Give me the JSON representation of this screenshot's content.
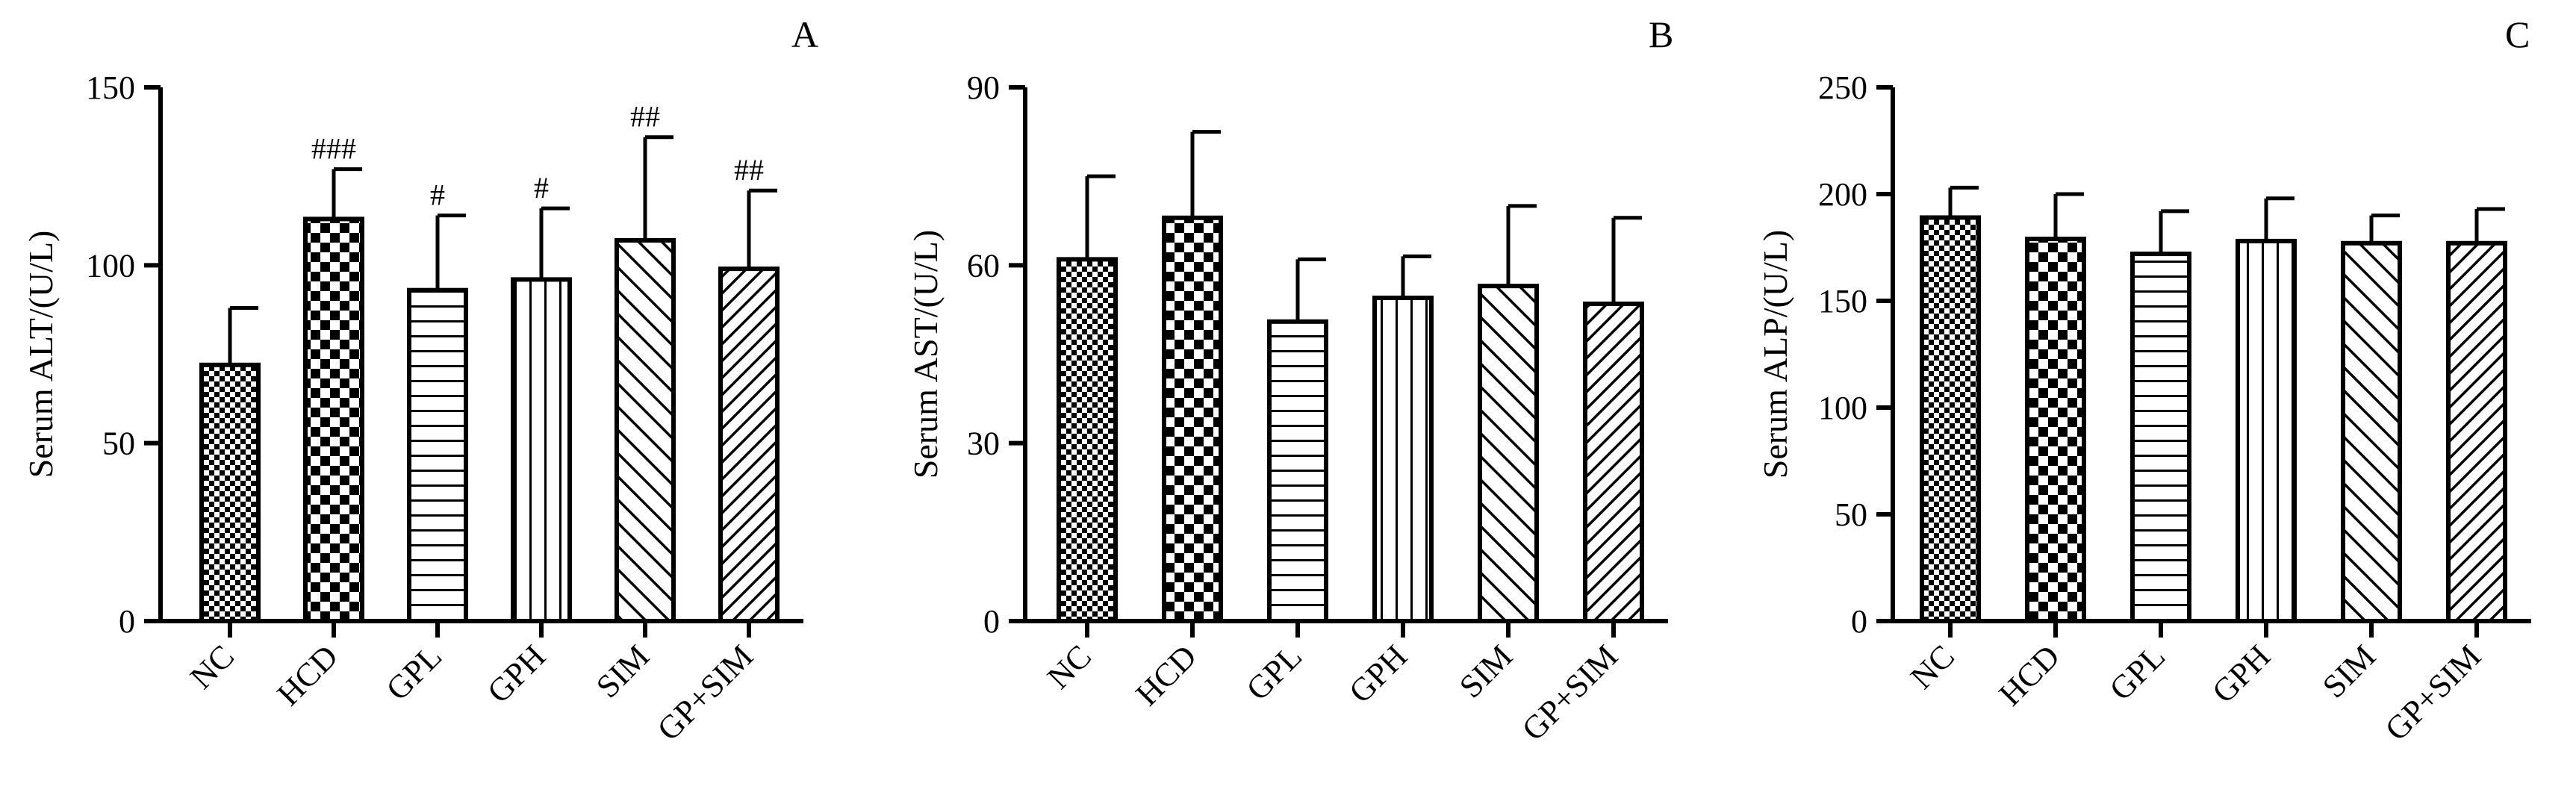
{
  "chart_data": [
    {
      "type": "bar",
      "panel_label": "A",
      "ylabel": "Serum ALT/(U/L)",
      "ylim": [
        0,
        150
      ],
      "yticks": [
        0,
        50,
        100,
        150
      ],
      "categories": [
        "NC",
        "HCD",
        "GPL",
        "GPH",
        "SIM",
        "GP+SIM"
      ],
      "values": [
        72,
        113,
        93,
        96,
        107,
        99
      ],
      "errors": [
        16,
        14,
        21,
        20,
        29,
        22
      ],
      "annotations": [
        "",
        "###",
        "#",
        "#",
        "##",
        "##"
      ],
      "patterns": [
        "small-check",
        "big-check",
        "horizontal",
        "vertical",
        "diag-wide",
        "diag-narrow"
      ]
    },
    {
      "type": "bar",
      "panel_label": "B",
      "ylabel": "Serum AST/(U/L)",
      "ylim": [
        0,
        90
      ],
      "yticks": [
        0,
        30,
        60,
        90
      ],
      "categories": [
        "NC",
        "HCD",
        "GPL",
        "GPH",
        "SIM",
        "GP+SIM"
      ],
      "values": [
        61,
        68,
        50.5,
        54.5,
        56.5,
        53.5
      ],
      "errors": [
        14,
        14.5,
        10.5,
        7,
        13.5,
        14.5
      ],
      "annotations": [
        "",
        "",
        "",
        "",
        "",
        ""
      ],
      "patterns": [
        "small-check",
        "big-check",
        "horizontal",
        "vertical",
        "diag-wide",
        "diag-narrow"
      ]
    },
    {
      "type": "bar",
      "panel_label": "C",
      "ylabel": "Serum ALP/(U/L)",
      "ylim": [
        0,
        250
      ],
      "yticks": [
        0,
        50,
        100,
        150,
        200,
        250
      ],
      "categories": [
        "NC",
        "HCD",
        "GPL",
        "GPH",
        "SIM",
        "GP+SIM"
      ],
      "values": [
        189,
        179,
        172,
        178,
        177,
        177
      ],
      "errors": [
        14,
        21,
        20,
        20,
        13,
        16
      ],
      "annotations": [
        "",
        "",
        "",
        "",
        "",
        ""
      ],
      "patterns": [
        "small-check",
        "big-check",
        "horizontal",
        "vertical",
        "diag-wide",
        "diag-narrow"
      ]
    }
  ]
}
